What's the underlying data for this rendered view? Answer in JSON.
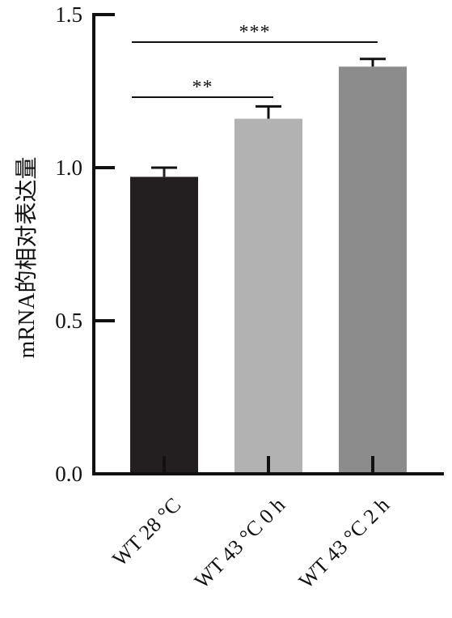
{
  "chart_data": {
    "type": "bar",
    "title": "",
    "xlabel": "",
    "ylabel": "mRNA的相对表达量",
    "ylim": [
      0,
      1.5
    ],
    "yticks": [
      0.0,
      0.5,
      1.0,
      1.5
    ],
    "ytick_labels": [
      "0.0",
      "0.5",
      "1.0",
      "1.5"
    ],
    "categories": [
      "WT 28 °C",
      "WT 43 °C 0 h",
      "WT 43 °C 2 h"
    ],
    "values": [
      0.97,
      1.16,
      1.33
    ],
    "errors": [
      0.03,
      0.04,
      0.025
    ],
    "bar_colors": [
      "#231f20",
      "#b2b2b2",
      "#8c8c8c"
    ],
    "grid": false,
    "significance": [
      {
        "from": 0,
        "to": 1,
        "label": "**",
        "y": 1.23
      },
      {
        "from": 0,
        "to": 2,
        "label": "***",
        "y": 1.41
      }
    ]
  }
}
